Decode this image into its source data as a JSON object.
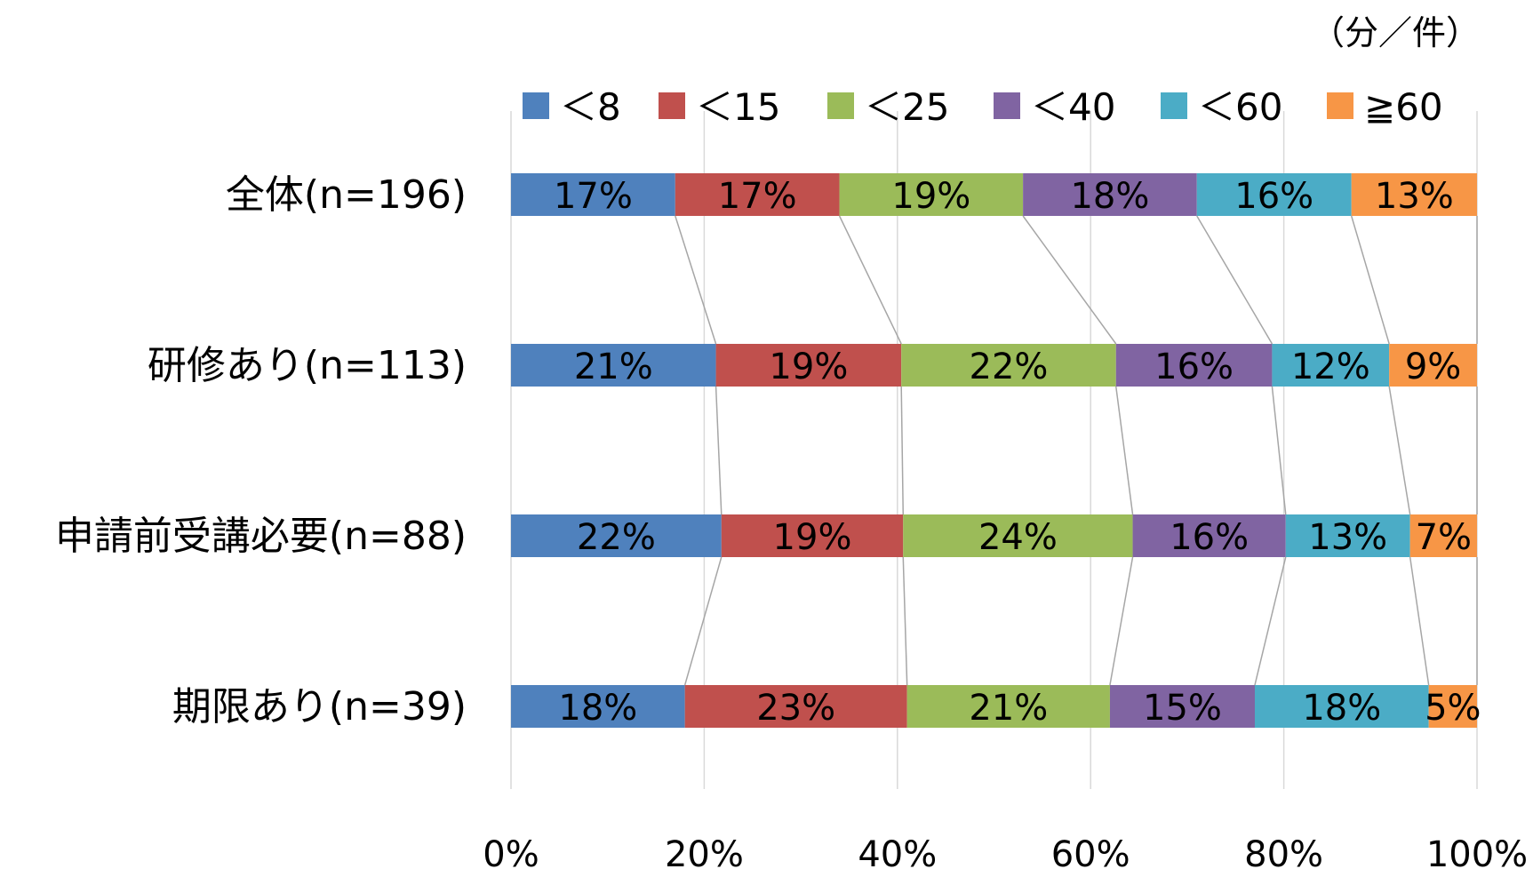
{
  "chart_data": {
    "type": "bar",
    "orientation": "horizontal",
    "stacked": "percent",
    "unit_note": "（分／件）",
    "categories": [
      "全体(n=196)",
      "研修あり(n=113)",
      "申請前受講必要(n=88)",
      "期限あり(n=39)"
    ],
    "series": [
      {
        "name": "＜8",
        "color": "#4F81BD",
        "values": [
          17,
          21,
          22,
          18
        ],
        "labels": [
          "17%",
          "21%",
          "22%",
          "18%"
        ]
      },
      {
        "name": "＜15",
        "color": "#C0504D",
        "values": [
          17,
          19,
          19,
          23
        ],
        "labels": [
          "17%",
          "19%",
          "19%",
          "23%"
        ]
      },
      {
        "name": "＜25",
        "color": "#9BBB59",
        "values": [
          19,
          22,
          24,
          21
        ],
        "labels": [
          "19%",
          "22%",
          "24%",
          "21%"
        ]
      },
      {
        "name": "＜40",
        "color": "#8064A2",
        "values": [
          18,
          16,
          16,
          15
        ],
        "labels": [
          "18%",
          "16%",
          "16%",
          "15%"
        ]
      },
      {
        "name": "＜60",
        "color": "#4BACC6",
        "values": [
          16,
          12,
          13,
          18
        ],
        "labels": [
          "16%",
          "12%",
          "13%",
          "18%"
        ]
      },
      {
        "name": "≧60",
        "color": "#F79646",
        "values": [
          13,
          9,
          7,
          5
        ],
        "labels": [
          "13%",
          "9%",
          "7%",
          "5%"
        ]
      }
    ],
    "x_ticks": [
      "0%",
      "20%",
      "40%",
      "60%",
      "80%",
      "100%"
    ],
    "xlim": [
      0,
      100
    ],
    "grid": true,
    "series_lines": true,
    "legend_position": "top"
  }
}
